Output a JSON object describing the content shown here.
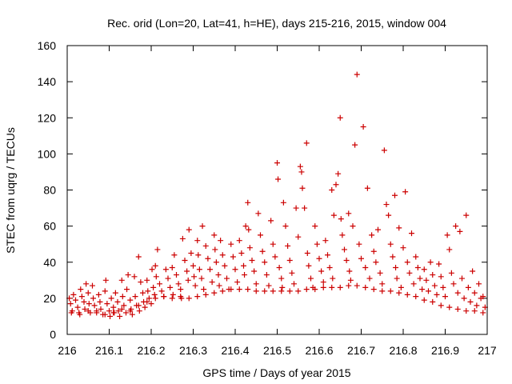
{
  "chart_data": {
    "type": "scatter",
    "title": "Rec. orid (Lon=20, Lat=41, h=HE), days 215-216, 2015, window 004",
    "xlabel": "GPS time / Days of year 2015",
    "ylabel": "STEC from uqrg / TECUs",
    "xlim": [
      216,
      217
    ],
    "ylim": [
      0,
      160
    ],
    "xticks": [
      "216",
      "216.1",
      "216.2",
      "216.3",
      "216.4",
      "216.5",
      "216.6",
      "216.7",
      "216.8",
      "216.9",
      "217"
    ],
    "yticks": [
      "0",
      "20",
      "40",
      "60",
      "80",
      "100",
      "120",
      "140",
      "160"
    ],
    "grid": false,
    "legend": "none",
    "marker": "plus",
    "color": "#cc0000",
    "series": [
      {
        "points": [
          [
            216.005,
            20
          ],
          [
            216.008,
            17
          ],
          [
            216.012,
            13
          ],
          [
            216.015,
            22
          ],
          [
            216.02,
            19
          ],
          [
            216.025,
            15
          ],
          [
            216.028,
            12
          ],
          [
            216.032,
            25
          ],
          [
            216.035,
            21
          ],
          [
            216.04,
            18
          ],
          [
            216.042,
            14
          ],
          [
            216.045,
            28
          ],
          [
            216.05,
            23
          ],
          [
            216.052,
            17
          ],
          [
            216.055,
            12
          ],
          [
            216.06,
            27
          ],
          [
            216.062,
            20
          ],
          [
            216.065,
            16
          ],
          [
            216.07,
            13
          ],
          [
            216.075,
            22
          ],
          [
            216.078,
            18
          ],
          [
            216.08,
            14
          ],
          [
            216.085,
            11
          ],
          [
            216.09,
            24
          ],
          [
            216.092,
            30
          ],
          [
            216.095,
            17
          ],
          [
            216.1,
            13
          ],
          [
            216.102,
            10
          ],
          [
            216.105,
            20
          ],
          [
            216.11,
            15
          ],
          [
            216.112,
            12
          ],
          [
            216.115,
            23
          ],
          [
            216.12,
            18
          ],
          [
            216.122,
            13
          ],
          [
            216.125,
            10
          ],
          [
            216.13,
            30
          ],
          [
            216.132,
            21
          ],
          [
            216.135,
            16
          ],
          [
            216.14,
            12
          ],
          [
            216.142,
            25
          ],
          [
            216.145,
            33
          ],
          [
            216.15,
            19
          ],
          [
            216.152,
            14
          ],
          [
            216.155,
            11
          ],
          [
            216.16,
            32
          ],
          [
            216.162,
            21
          ],
          [
            216.165,
            16
          ],
          [
            216.17,
            43
          ],
          [
            216.172,
            13
          ],
          [
            216.175,
            29
          ],
          [
            216.18,
            23
          ],
          [
            216.182,
            18
          ],
          [
            216.185,
            15
          ],
          [
            216.19,
            30
          ],
          [
            216.192,
            24
          ],
          [
            216.195,
            20
          ],
          [
            216.2,
            17
          ],
          [
            216.202,
            36
          ],
          [
            216.205,
            26
          ],
          [
            216.208,
            22
          ],
          [
            216.21,
            38
          ],
          [
            216.212,
            32
          ],
          [
            216.215,
            47
          ],
          [
            216.22,
            28
          ],
          [
            216.225,
            24
          ],
          [
            216.23,
            21
          ],
          [
            216.235,
            36
          ],
          [
            216.24,
            31
          ],
          [
            216.245,
            26
          ],
          [
            216.25,
            37
          ],
          [
            216.252,
            22
          ],
          [
            216.255,
            44
          ],
          [
            216.26,
            33
          ],
          [
            216.265,
            28
          ],
          [
            216.27,
            25
          ],
          [
            216.272,
            20
          ],
          [
            216.275,
            53
          ],
          [
            216.28,
            41
          ],
          [
            216.285,
            35
          ],
          [
            216.288,
            30
          ],
          [
            216.29,
            58
          ],
          [
            216.295,
            45
          ],
          [
            216.3,
            38
          ],
          [
            216.302,
            32
          ],
          [
            216.305,
            27
          ],
          [
            216.31,
            52
          ],
          [
            216.312,
            44
          ],
          [
            216.315,
            36
          ],
          [
            216.32,
            31
          ],
          [
            216.322,
            60
          ],
          [
            216.325,
            25
          ],
          [
            216.33,
            49
          ],
          [
            216.335,
            42
          ],
          [
            216.34,
            36
          ],
          [
            216.345,
            29
          ],
          [
            216.35,
            55
          ],
          [
            216.352,
            47
          ],
          [
            216.355,
            40
          ],
          [
            216.36,
            33
          ],
          [
            216.362,
            27
          ],
          [
            216.365,
            52
          ],
          [
            216.37,
            44
          ],
          [
            216.375,
            38
          ],
          [
            216.38,
            31
          ],
          [
            216.385,
            25
          ],
          [
            216.39,
            50
          ],
          [
            216.395,
            43
          ],
          [
            216.4,
            36
          ],
          [
            216.405,
            29
          ],
          [
            216.41,
            52
          ],
          [
            216.415,
            45
          ],
          [
            216.42,
            38
          ],
          [
            216.422,
            33
          ],
          [
            216.425,
            60
          ],
          [
            216.43,
            73
          ],
          [
            216.432,
            58
          ],
          [
            216.435,
            48
          ],
          [
            216.44,
            41
          ],
          [
            216.445,
            35
          ],
          [
            216.45,
            28
          ],
          [
            216.455,
            67
          ],
          [
            216.46,
            55
          ],
          [
            216.465,
            46
          ],
          [
            216.47,
            40
          ],
          [
            216.475,
            33
          ],
          [
            216.48,
            27
          ],
          [
            216.485,
            63
          ],
          [
            216.49,
            50
          ],
          [
            216.495,
            43
          ],
          [
            216.5,
            95
          ],
          [
            216.502,
            86
          ],
          [
            216.505,
            37
          ],
          [
            216.51,
            31
          ],
          [
            216.512,
            26
          ],
          [
            216.515,
            73
          ],
          [
            216.52,
            60
          ],
          [
            216.525,
            49
          ],
          [
            216.53,
            41
          ],
          [
            216.535,
            34
          ],
          [
            216.54,
            28
          ],
          [
            216.545,
            70
          ],
          [
            216.55,
            54
          ],
          [
            216.555,
            93
          ],
          [
            216.558,
            90
          ],
          [
            216.56,
            81
          ],
          [
            216.565,
            70
          ],
          [
            216.57,
            106
          ],
          [
            216.572,
            45
          ],
          [
            216.575,
            38
          ],
          [
            216.58,
            31
          ],
          [
            216.585,
            26
          ],
          [
            216.59,
            60
          ],
          [
            216.595,
            50
          ],
          [
            216.6,
            42
          ],
          [
            216.605,
            35
          ],
          [
            216.61,
            29
          ],
          [
            216.615,
            52
          ],
          [
            216.62,
            44
          ],
          [
            216.625,
            37
          ],
          [
            216.63,
            80
          ],
          [
            216.632,
            31
          ],
          [
            216.635,
            66
          ],
          [
            216.64,
            83
          ],
          [
            216.645,
            89
          ],
          [
            216.65,
            120
          ],
          [
            216.652,
            64
          ],
          [
            216.655,
            55
          ],
          [
            216.66,
            47
          ],
          [
            216.665,
            41
          ],
          [
            216.67,
            67
          ],
          [
            216.672,
            35
          ],
          [
            216.675,
            30
          ],
          [
            216.68,
            60
          ],
          [
            216.685,
            105
          ],
          [
            216.69,
            144
          ],
          [
            216.695,
            50
          ],
          [
            216.7,
            42
          ],
          [
            216.705,
            115
          ],
          [
            216.71,
            37
          ],
          [
            216.715,
            81
          ],
          [
            216.72,
            31
          ],
          [
            216.725,
            55
          ],
          [
            216.73,
            46
          ],
          [
            216.735,
            40
          ],
          [
            216.74,
            58
          ],
          [
            216.745,
            34
          ],
          [
            216.75,
            28
          ],
          [
            216.755,
            102
          ],
          [
            216.76,
            72
          ],
          [
            216.765,
            66
          ],
          [
            216.77,
            50
          ],
          [
            216.775,
            43
          ],
          [
            216.78,
            77
          ],
          [
            216.782,
            37
          ],
          [
            216.785,
            31
          ],
          [
            216.79,
            59
          ],
          [
            216.795,
            26
          ],
          [
            216.8,
            48
          ],
          [
            216.805,
            79
          ],
          [
            216.81,
            40
          ],
          [
            216.815,
            34
          ],
          [
            216.82,
            56
          ],
          [
            216.825,
            28
          ],
          [
            216.83,
            43
          ],
          [
            216.835,
            37
          ],
          [
            216.84,
            31
          ],
          [
            216.845,
            25
          ],
          [
            216.85,
            36
          ],
          [
            216.855,
            30
          ],
          [
            216.86,
            24
          ],
          [
            216.865,
            40
          ],
          [
            216.87,
            33
          ],
          [
            216.875,
            27
          ],
          [
            216.88,
            22
          ],
          [
            216.885,
            39
          ],
          [
            216.89,
            32
          ],
          [
            216.895,
            26
          ],
          [
            216.9,
            21
          ],
          [
            216.905,
            55
          ],
          [
            216.91,
            47
          ],
          [
            216.915,
            34
          ],
          [
            216.92,
            28
          ],
          [
            216.925,
            60
          ],
          [
            216.93,
            23
          ],
          [
            216.935,
            57
          ],
          [
            216.94,
            31
          ],
          [
            216.945,
            20
          ],
          [
            216.95,
            66
          ],
          [
            216.955,
            26
          ],
          [
            216.96,
            18
          ],
          [
            216.965,
            35
          ],
          [
            216.97,
            23
          ],
          [
            216.975,
            16
          ],
          [
            216.98,
            28
          ],
          [
            216.985,
            20
          ],
          [
            216.99,
            21
          ],
          [
            216.995,
            15
          ],
          [
            216.01,
            12
          ],
          [
            216.03,
            11
          ],
          [
            216.05,
            13
          ],
          [
            216.07,
            12
          ],
          [
            216.09,
            11
          ],
          [
            216.11,
            12
          ],
          [
            216.13,
            14
          ],
          [
            216.15,
            13
          ],
          [
            216.17,
            16
          ],
          [
            216.19,
            18
          ],
          [
            216.21,
            20
          ],
          [
            216.23,
            21
          ],
          [
            216.25,
            20
          ],
          [
            216.27,
            21
          ],
          [
            216.29,
            20
          ],
          [
            216.31,
            21
          ],
          [
            216.33,
            22
          ],
          [
            216.35,
            23
          ],
          [
            216.37,
            24
          ],
          [
            216.39,
            25
          ],
          [
            216.41,
            25
          ],
          [
            216.43,
            25
          ],
          [
            216.45,
            24
          ],
          [
            216.47,
            24
          ],
          [
            216.49,
            24
          ],
          [
            216.51,
            24
          ],
          [
            216.53,
            24
          ],
          [
            216.55,
            24
          ],
          [
            216.57,
            25
          ],
          [
            216.59,
            25
          ],
          [
            216.61,
            26
          ],
          [
            216.63,
            26
          ],
          [
            216.65,
            26
          ],
          [
            216.67,
            27
          ],
          [
            216.69,
            27
          ],
          [
            216.71,
            26
          ],
          [
            216.73,
            25
          ],
          [
            216.75,
            24
          ],
          [
            216.77,
            24
          ],
          [
            216.79,
            23
          ],
          [
            216.81,
            22
          ],
          [
            216.83,
            21
          ],
          [
            216.85,
            19
          ],
          [
            216.87,
            18
          ],
          [
            216.89,
            16
          ],
          [
            216.91,
            15
          ],
          [
            216.93,
            14
          ],
          [
            216.95,
            13
          ],
          [
            216.97,
            13
          ],
          [
            216.99,
            12
          ]
        ]
      }
    ]
  }
}
